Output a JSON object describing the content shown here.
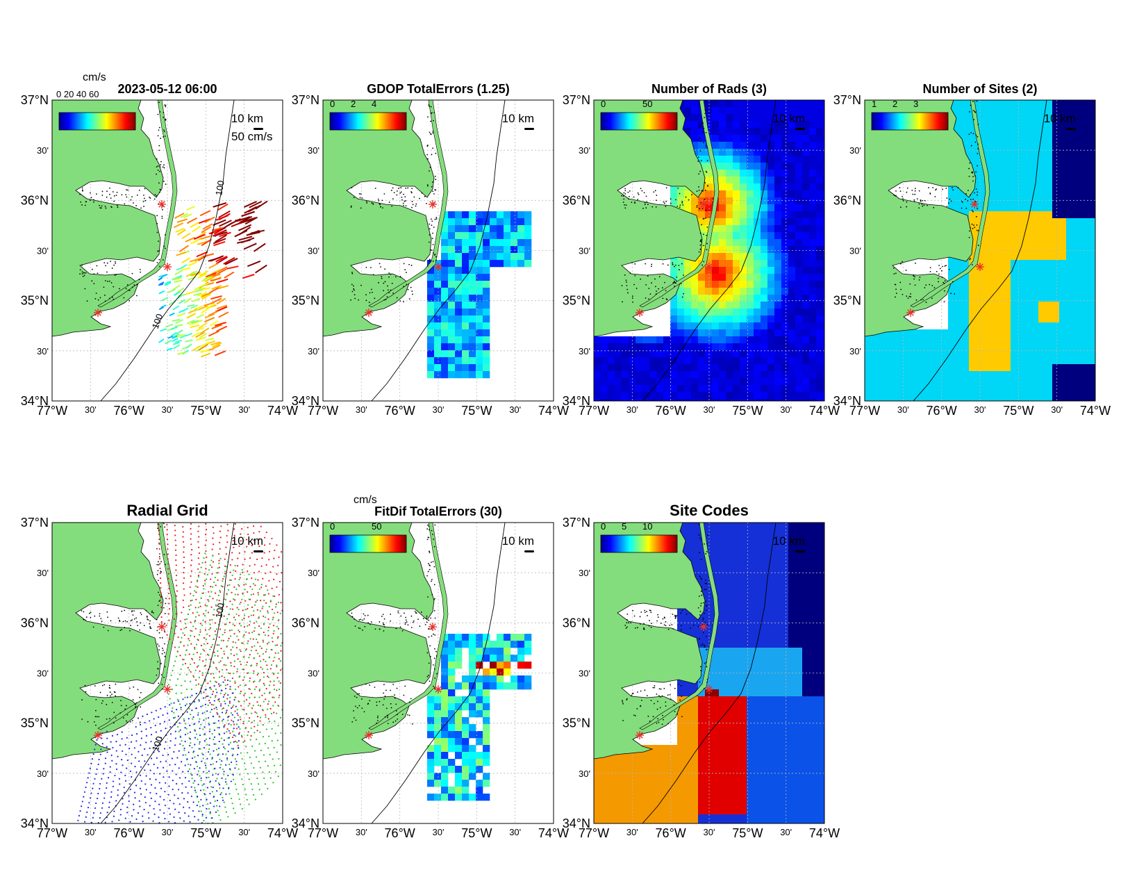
{
  "colors": {
    "land": "#84dd7c",
    "contour": "#000000",
    "site_marker": "#e8302a",
    "grid_site_1": "#ee1c1c",
    "grid_site_2": "#22c61f",
    "grid_site_3": "#1c26e8",
    "sites_1": "#00d6f5",
    "sites_2": "#ffcb00",
    "sites_3": "#8a0f0f",
    "deep_blue": "#00007f"
  },
  "common": {
    "lat_labels": [
      "37°N",
      "30'",
      "36°N",
      "30'",
      "35°N",
      "30'",
      "34°N"
    ],
    "lon_labels": [
      "77°W",
      "30'",
      "76°W",
      "30'",
      "75°W",
      "30'",
      "74°W"
    ],
    "scale_label": "10 km",
    "depth_label": "100"
  },
  "panels": {
    "totals": {
      "title": "2023-05-12 06:00",
      "colorbar_unit": "cm/s",
      "colorbar_ticks_overlap": "0 20 40 60",
      "arrow_scale_label": "50 cm/s"
    },
    "gdop": {
      "title": "GDOP TotalErrors (1.25)",
      "colorbar_ticks": [
        "0",
        "2",
        "4"
      ],
      "contour_label": "1.25"
    },
    "rads": {
      "title": "Number of Rads (3)",
      "colorbar_ticks": [
        "0",
        "50"
      ],
      "contour_label": "3"
    },
    "sites": {
      "title": "Number of Sites (2)",
      "colorbar_ticks": [
        "1",
        "2",
        "3"
      ],
      "contour_label": "2"
    },
    "radial": {
      "title": "Radial Grid"
    },
    "fitdif": {
      "title": "FitDif TotalErrors (30)",
      "colorbar_unit": "cm/s",
      "colorbar_ticks": [
        "0",
        "50"
      ],
      "contour_label": "30"
    },
    "codes": {
      "title": "Site Codes",
      "colorbar_ticks": [
        "0",
        "5",
        "10"
      ]
    }
  }
}
